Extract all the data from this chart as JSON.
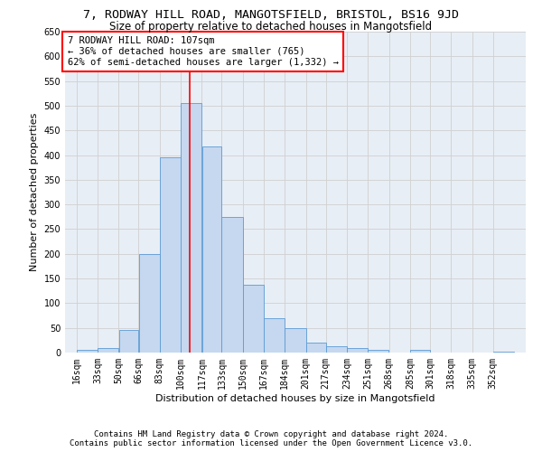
{
  "title1": "7, RODWAY HILL ROAD, MANGOTSFIELD, BRISTOL, BS16 9JD",
  "title2": "Size of property relative to detached houses in Mangotsfield",
  "xlabel": "Distribution of detached houses by size in Mangotsfield",
  "ylabel": "Number of detached properties",
  "categories": [
    "16sqm",
    "33sqm",
    "50sqm",
    "66sqm",
    "83sqm",
    "100sqm",
    "117sqm",
    "133sqm",
    "150sqm",
    "167sqm",
    "184sqm",
    "201sqm",
    "217sqm",
    "234sqm",
    "251sqm",
    "268sqm",
    "285sqm",
    "301sqm",
    "318sqm",
    "335sqm",
    "352sqm"
  ],
  "values": [
    5,
    10,
    45,
    200,
    395,
    505,
    418,
    275,
    137,
    70,
    50,
    20,
    12,
    9,
    5,
    0,
    5,
    0,
    0,
    0,
    2
  ],
  "bar_color": "#c5d8f0",
  "bar_edge_color": "#5b9bd5",
  "property_line_x": 107,
  "property_line_label": "7 RODWAY HILL ROAD: 107sqm",
  "annotation_line1": "← 36% of detached houses are smaller (765)",
  "annotation_line2": "62% of semi-detached houses are larger (1,332) →",
  "annotation_box_color": "white",
  "annotation_box_edge_color": "red",
  "vline_color": "red",
  "ylim": [
    0,
    650
  ],
  "yticks": [
    0,
    50,
    100,
    150,
    200,
    250,
    300,
    350,
    400,
    450,
    500,
    550,
    600,
    650
  ],
  "grid_color": "#d0d0d0",
  "bg_color": "#e8eef5",
  "footer1": "Contains HM Land Registry data © Crown copyright and database right 2024.",
  "footer2": "Contains public sector information licensed under the Open Government Licence v3.0.",
  "title1_fontsize": 9.5,
  "title2_fontsize": 8.5,
  "xlabel_fontsize": 8,
  "ylabel_fontsize": 8,
  "tick_fontsize": 7,
  "annotation_fontsize": 7.5,
  "footer_fontsize": 6.5
}
